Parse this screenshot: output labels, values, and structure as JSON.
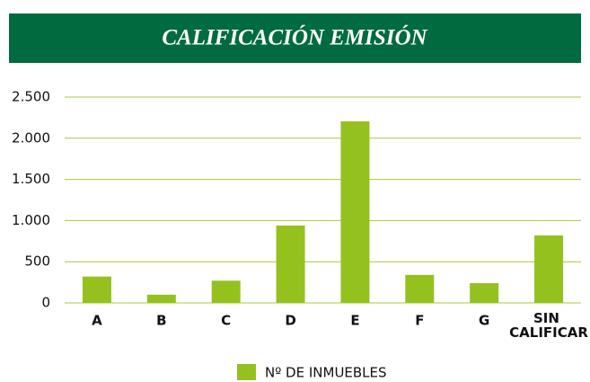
{
  "chart_data": {
    "type": "bar",
    "title": "CALIFICACIÓN EMISIÓN",
    "categories": [
      "A",
      "B",
      "C",
      "D",
      "E",
      "F",
      "G",
      "SIN CALIFICAR"
    ],
    "series": [
      {
        "name": "Nº DE INMUEBLES",
        "color": "#95c11f",
        "values": [
          320,
          100,
          270,
          940,
          2205,
          340,
          240,
          820
        ]
      }
    ],
    "ylim": [
      0,
      2500
    ],
    "yticks": [
      0,
      500,
      {
        "value": 1000,
        "label": "1.000"
      },
      {
        "value": 1500,
        "label": "1.500"
      },
      {
        "value": 2000,
        "label": "2.000"
      },
      {
        "value": 2500,
        "label": "2.500"
      }
    ],
    "grid": true,
    "legend": "bottom"
  }
}
